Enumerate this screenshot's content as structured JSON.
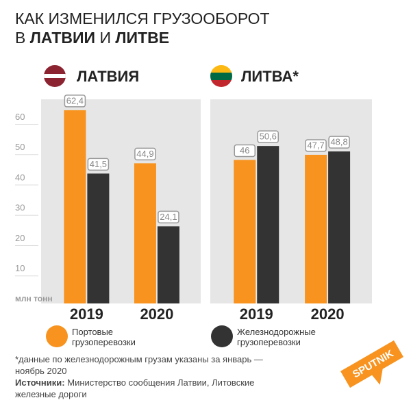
{
  "title_line1": "КАК ИЗМЕНИЛСЯ ГРУЗООБОРОТ",
  "title_line2": [
    "В",
    "ЛАТВИИ",
    "И",
    "ЛИТВЕ"
  ],
  "chart_data": [
    {
      "type": "bar",
      "title": "ЛАТВИЯ",
      "categories": [
        "2019",
        "2020"
      ],
      "y_label": "млн тонн",
      "ylim": [
        0,
        66
      ],
      "yticks": [
        10,
        20,
        30,
        40,
        50,
        60
      ],
      "series": [
        {
          "name": "Портовые грузоперевозки",
          "color": "#f7931e",
          "values": [
            62.4,
            44.9
          ],
          "value_labels": [
            "62,4",
            "44,9"
          ]
        },
        {
          "name": "Железнодорожные грузоперевозки",
          "color": "#333333",
          "values": [
            41.5,
            24.1
          ],
          "value_labels": [
            "41,5",
            "24,1"
          ]
        }
      ]
    },
    {
      "type": "bar",
      "title": "ЛИТВА*",
      "categories": [
        "2019",
        "2020"
      ],
      "ylim": [
        0,
        66
      ],
      "series": [
        {
          "name": "Портовые грузоперевозки",
          "color": "#f7931e",
          "values": [
            46,
            47.7
          ],
          "value_labels": [
            "46",
            "47,7"
          ]
        },
        {
          "name": "Железнодорожные грузоперевозки",
          "color": "#333333",
          "values": [
            50.6,
            48.8
          ],
          "value_labels": [
            "50,6",
            "48,8"
          ]
        }
      ]
    }
  ],
  "footnote": "*данные по железнодорожным грузам указаны за январь — ноябрь 2020",
  "sources_label": "Источники:",
  "sources": "Министерство сообщения Латвии, Литовские железные дороги",
  "logo": "SPUTNIK"
}
